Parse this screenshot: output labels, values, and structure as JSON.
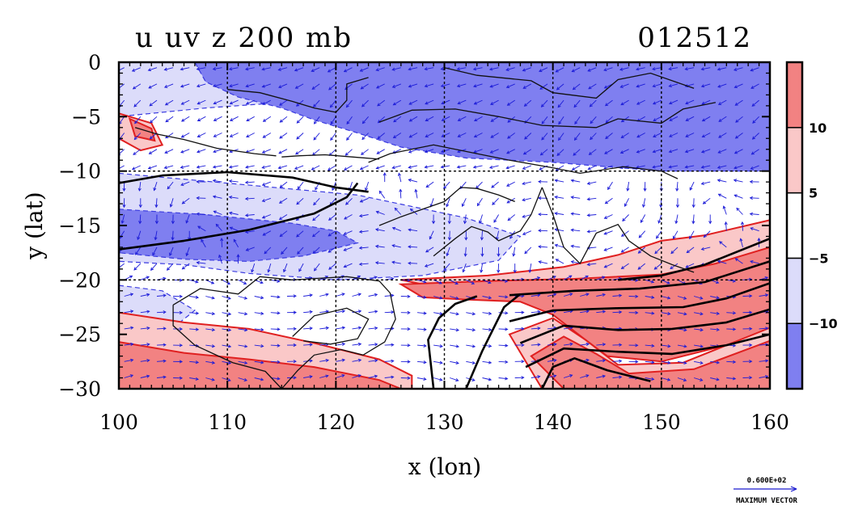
{
  "figure": {
    "title_left": "u uv z 200 mb",
    "title_right": "012512"
  },
  "chart_data": {
    "type": "heatmap",
    "title": "u uv z 200 mb",
    "subtitle": "012512",
    "xlabel": "x (lon)",
    "ylabel": "y (lat)",
    "xlim": [
      100,
      160
    ],
    "ylim": [
      -30,
      0
    ],
    "x_ticks": [
      "100",
      "110",
      "120",
      "130",
      "140",
      "150",
      "160"
    ],
    "y_ticks": [
      "0",
      "−5",
      "−10",
      "−15",
      "−20",
      "−25",
      "−30"
    ],
    "grid": true,
    "colorbar": {
      "levels": [
        -10,
        -5,
        5,
        10
      ],
      "tick_labels": [
        "10",
        "5",
        "−5",
        "−10"
      ],
      "colors": [
        "#7f7ff0",
        "#dcdcfa",
        "#ffffff",
        "#fac8c8",
        "#f28282"
      ]
    },
    "reference_vector": {
      "value": "0.600E+02",
      "label": "MAXIMUM VECTOR"
    },
    "fill_colors": {
      "strong_negative": "#7f7ff0",
      "weak_negative": "#dcdcfa",
      "weak_positive": "#fac8c8",
      "strong_positive": "#f28282"
    },
    "regions": [
      {
        "level": "weak_negative",
        "polygon": [
          [
            100,
            0
          ],
          [
            160,
            0
          ],
          [
            160,
            -1.3
          ],
          [
            130,
            -2.8
          ],
          [
            118,
            -3.5
          ],
          [
            108,
            -4.2
          ],
          [
            100,
            -5.0
          ]
        ]
      },
      {
        "level": "strong_negative",
        "polygon": [
          [
            107,
            0
          ],
          [
            160,
            0
          ],
          [
            160,
            -10
          ],
          [
            150,
            -10
          ],
          [
            140,
            -9.2
          ],
          [
            132,
            -8.8
          ],
          [
            126,
            -7.8
          ],
          [
            122,
            -6.5
          ],
          [
            118,
            -5.3
          ],
          [
            115,
            -4.2
          ],
          [
            111,
            -3.2
          ],
          [
            108,
            -1.8
          ]
        ]
      },
      {
        "level": "weak_negative",
        "polygon": [
          [
            100,
            -10.2
          ],
          [
            122,
            -12.2
          ],
          [
            132,
            -14.3
          ],
          [
            137,
            -16.0
          ],
          [
            135,
            -18.2
          ],
          [
            128,
            -19.6
          ],
          [
            120,
            -20.0
          ],
          [
            112,
            -19.4
          ],
          [
            106,
            -18.6
          ],
          [
            100,
            -18.3
          ]
        ]
      },
      {
        "level": "strong_negative",
        "polygon": [
          [
            100,
            -13.5
          ],
          [
            108,
            -14.0
          ],
          [
            116,
            -14.8
          ],
          [
            120,
            -15.5
          ],
          [
            122,
            -16.6
          ],
          [
            117,
            -17.8
          ],
          [
            112,
            -18.3
          ],
          [
            106,
            -18.1
          ],
          [
            100,
            -17.5
          ]
        ]
      },
      {
        "level": "weak_negative",
        "polygon": [
          [
            100,
            -20.5
          ],
          [
            104,
            -21.0
          ],
          [
            107,
            -22.8
          ],
          [
            104,
            -25.2
          ],
          [
            100,
            -26.0
          ]
        ]
      },
      {
        "level": "weak_positive",
        "polygon": [
          [
            100,
            -4.7
          ],
          [
            103,
            -5.6
          ],
          [
            104,
            -7.6
          ],
          [
            102,
            -8.1
          ],
          [
            100,
            -7.0
          ]
        ]
      },
      {
        "level": "strong_positive",
        "polygon": [
          [
            101,
            -5.2
          ],
          [
            103,
            -6.1
          ],
          [
            103.3,
            -7.2
          ],
          [
            101.5,
            -6.8
          ]
        ]
      },
      {
        "level": "weak_positive",
        "polygon": [
          [
            126,
            -20.0
          ],
          [
            134,
            -19.6
          ],
          [
            141,
            -18.8
          ],
          [
            146,
            -17.7
          ],
          [
            150,
            -16.4
          ],
          [
            154,
            -15.9
          ],
          [
            160,
            -14.5
          ],
          [
            160,
            -19.8
          ],
          [
            152,
            -20.0
          ],
          [
            144,
            -20.0
          ],
          [
            136,
            -20.4
          ],
          [
            130,
            -20.8
          ]
        ]
      },
      {
        "level": "strong_positive",
        "polygon": [
          [
            126,
            -20.4
          ],
          [
            134,
            -20.1
          ],
          [
            142,
            -19.9
          ],
          [
            150,
            -19.5
          ],
          [
            155,
            -18.5
          ],
          [
            160,
            -17.0
          ],
          [
            160,
            -24.5
          ],
          [
            156,
            -26.0
          ],
          [
            150,
            -27.5
          ],
          [
            145,
            -27.0
          ],
          [
            143,
            -25.5
          ],
          [
            140,
            -23.2
          ],
          [
            137,
            -22.0
          ],
          [
            132,
            -21.8
          ],
          [
            128,
            -21.6
          ]
        ]
      },
      {
        "level": "weak_positive",
        "polygon": [
          [
            100,
            -23.0
          ],
          [
            106,
            -23.9
          ],
          [
            112,
            -24.5
          ],
          [
            118,
            -25.8
          ],
          [
            124,
            -27.3
          ],
          [
            127,
            -28.8
          ],
          [
            127,
            -30
          ],
          [
            100,
            -30
          ]
        ]
      },
      {
        "level": "strong_positive",
        "polygon": [
          [
            100,
            -25.7
          ],
          [
            106,
            -26.7
          ],
          [
            112,
            -27.3
          ],
          [
            118,
            -28.0
          ],
          [
            124,
            -29.2
          ],
          [
            126,
            -30
          ],
          [
            100,
            -30
          ]
        ]
      },
      {
        "level": "weak_positive",
        "polygon": [
          [
            136,
            -25.0
          ],
          [
            140,
            -23.5
          ],
          [
            143,
            -25.5
          ],
          [
            146,
            -27.8
          ],
          [
            152,
            -27.6
          ],
          [
            160,
            -24.4
          ],
          [
            160,
            -30
          ],
          [
            139,
            -30
          ]
        ]
      },
      {
        "level": "strong_positive",
        "polygon": [
          [
            138,
            -27.0
          ],
          [
            141,
            -25.2
          ],
          [
            144,
            -26.8
          ],
          [
            147,
            -28.6
          ],
          [
            153,
            -28.2
          ],
          [
            160,
            -25.6
          ],
          [
            160,
            -30
          ],
          [
            141,
            -30
          ]
        ]
      }
    ],
    "geopotential_contours": [
      [
        [
          100,
          -17.2
        ],
        [
          106,
          -16.4
        ],
        [
          112,
          -15.4
        ],
        [
          118,
          -13.9
        ],
        [
          121,
          -12.4
        ],
        [
          122,
          -11.1
        ]
      ],
      [
        [
          100,
          -11.1
        ],
        [
          104,
          -10.4
        ],
        [
          110,
          -10.1
        ],
        [
          116,
          -10.6
        ],
        [
          120,
          -11.5
        ],
        [
          123,
          -11.9
        ]
      ],
      [
        [
          146,
          -20.0
        ],
        [
          150,
          -19.6
        ],
        [
          154,
          -18.6
        ],
        [
          160,
          -16.2
        ]
      ],
      [
        [
          136,
          -21.4
        ],
        [
          142,
          -21.0
        ],
        [
          148,
          -20.8
        ],
        [
          154,
          -20.2
        ],
        [
          160,
          -18.3
        ]
      ],
      [
        [
          136,
          -23.8
        ],
        [
          140,
          -22.8
        ],
        [
          146,
          -22.6
        ],
        [
          152,
          -22.5
        ],
        [
          156,
          -21.7
        ],
        [
          160,
          -20.3
        ]
      ],
      [
        [
          137,
          -25.8
        ],
        [
          141,
          -24.2
        ],
        [
          146,
          -24.6
        ],
        [
          151,
          -24.5
        ],
        [
          156,
          -23.9
        ],
        [
          160,
          -22.7
        ]
      ],
      [
        [
          137.5,
          -28.0
        ],
        [
          141,
          -26.3
        ],
        [
          146,
          -26.6
        ],
        [
          151,
          -26.8
        ],
        [
          156,
          -26.0
        ],
        [
          160,
          -25.0
        ]
      ],
      [
        [
          139,
          -30
        ],
        [
          140,
          -28.0
        ],
        [
          142,
          -27.2
        ],
        [
          145,
          -28.3
        ],
        [
          149,
          -29.3
        ]
      ],
      [
        [
          132,
          -30
        ],
        [
          133.5,
          -26.5
        ],
        [
          135.5,
          -22.5
        ],
        [
          137,
          -21.3
        ]
      ],
      [
        [
          129,
          -30
        ],
        [
          128.5,
          -25.5
        ],
        [
          129.5,
          -23.5
        ],
        [
          131,
          -22.2
        ],
        [
          133,
          -21.5
        ]
      ]
    ],
    "coastlines": [
      [
        [
          105,
          -22.3
        ],
        [
          107.5,
          -20.8
        ],
        [
          111,
          -21.3
        ],
        [
          113,
          -19.7
        ],
        [
          116,
          -20.0
        ],
        [
          121,
          -19.7
        ],
        [
          124,
          -20.1
        ],
        [
          125,
          -21.2
        ],
        [
          125.5,
          -23.6
        ],
        [
          124.5,
          -25.7
        ],
        [
          122.5,
          -26.9
        ],
        [
          120.5,
          -26.4
        ],
        [
          118,
          -26.9
        ],
        [
          116.5,
          -28.3
        ],
        [
          115,
          -30
        ]
      ],
      [
        [
          115,
          -30
        ],
        [
          113.5,
          -28.4
        ],
        [
          110.5,
          -27.6
        ],
        [
          107,
          -26.0
        ],
        [
          105,
          -24.2
        ],
        [
          105,
          -22.3
        ]
      ],
      [
        [
          116,
          -25.2
        ],
        [
          118,
          -23.3
        ],
        [
          121,
          -22.6
        ],
        [
          123,
          -23.6
        ],
        [
          122,
          -25.4
        ],
        [
          119.5,
          -25.9
        ],
        [
          117,
          -25.6
        ]
      ],
      [
        [
          123,
          -9.2
        ],
        [
          125,
          -8.4
        ],
        [
          129,
          -7.6
        ],
        [
          133,
          -8.4
        ],
        [
          136,
          -9.0
        ],
        [
          140,
          -9.7
        ],
        [
          142.5,
          -10.2
        ],
        [
          146.5,
          -9.6
        ],
        [
          150,
          -10.0
        ],
        [
          151.5,
          -10.7
        ]
      ],
      [
        [
          124,
          -5.5
        ],
        [
          127,
          -4.4
        ],
        [
          131,
          -4.3
        ],
        [
          135,
          -5.0
        ],
        [
          139,
          -5.8
        ],
        [
          144,
          -6.0
        ],
        [
          146,
          -5.2
        ],
        [
          150,
          -5.6
        ],
        [
          152,
          -4.3
        ],
        [
          155,
          -3.7
        ]
      ],
      [
        [
          130,
          -0.5
        ],
        [
          133,
          -1.2
        ],
        [
          138,
          -1.7
        ],
        [
          140,
          -2.8
        ],
        [
          144,
          -3.3
        ],
        [
          146,
          -1.6
        ],
        [
          149,
          -1.0
        ],
        [
          153,
          -2.4
        ]
      ],
      [
        [
          110,
          -2.5
        ],
        [
          113,
          -2.8
        ],
        [
          116,
          -3.6
        ],
        [
          118,
          -4.2
        ],
        [
          120,
          -4.6
        ],
        [
          121,
          -3.5
        ],
        [
          121,
          -2.0
        ],
        [
          123,
          -1.4
        ]
      ],
      [
        [
          101.5,
          -6.0
        ],
        [
          103.5,
          -6.6
        ],
        [
          106,
          -7.1
        ],
        [
          109,
          -7.9
        ],
        [
          112.5,
          -8.4
        ],
        [
          114.5,
          -8.6
        ]
      ],
      [
        [
          115,
          -8.7
        ],
        [
          116.5,
          -8.6
        ],
        [
          119,
          -8.5
        ],
        [
          121.5,
          -8.7
        ],
        [
          124,
          -8.9
        ]
      ],
      [
        [
          139,
          -11.5
        ],
        [
          140,
          -14.0
        ],
        [
          141,
          -17.0
        ],
        [
          142.5,
          -18.5
        ],
        [
          144,
          -15.7
        ],
        [
          146,
          -14.9
        ],
        [
          147,
          -16.4
        ],
        [
          149,
          -17.8
        ],
        [
          151,
          -18.6
        ],
        [
          153,
          -19.3
        ]
      ],
      [
        [
          129,
          -17.8
        ],
        [
          131,
          -16.2
        ],
        [
          132.5,
          -15.1
        ],
        [
          134,
          -15.6
        ],
        [
          135,
          -16.4
        ],
        [
          137,
          -15.5
        ],
        [
          138,
          -14.0
        ],
        [
          139,
          -11.5
        ]
      ],
      [
        [
          124,
          -15.0
        ],
        [
          126,
          -14.2
        ],
        [
          128,
          -13.5
        ],
        [
          130,
          -12.8
        ],
        [
          131.5,
          -11.5
        ],
        [
          133,
          -11.6
        ],
        [
          135,
          -12.2
        ],
        [
          136.5,
          -12.8
        ]
      ]
    ],
    "vector_field": {
      "x_range": [
        100,
        160
      ],
      "y_range": [
        -30,
        0
      ],
      "grid_spacing_deg": 1.5,
      "max_vector": 60,
      "description_of_flow": "easterly in north, westerly jet in south"
    }
  }
}
